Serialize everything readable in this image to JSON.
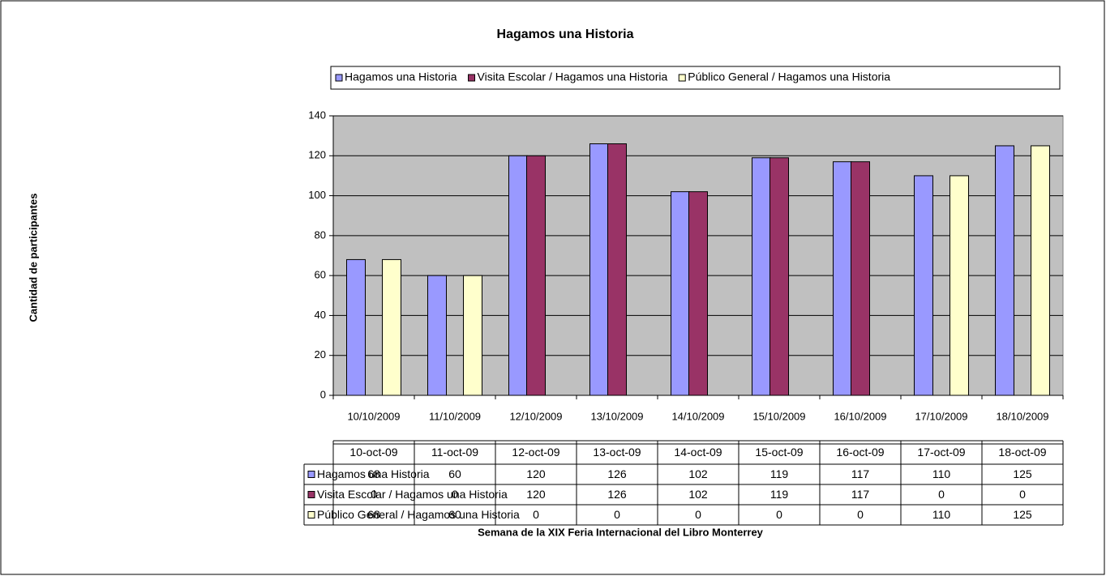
{
  "chart_data": {
    "type": "bar",
    "title": "Hagamos una Historia",
    "y_label": "Cantidad de participantes",
    "x_label": "Semana de la XIX Feria Internacional del Libro Monterrey",
    "categories": [
      "10/10/2009",
      "11/10/2009",
      "12/10/2009",
      "13/10/2009",
      "14/10/2009",
      "15/10/2009",
      "16/10/2009",
      "17/10/2009",
      "18/10/2009"
    ],
    "table_columns": [
      "10-oct-09",
      "11-oct-09",
      "12-oct-09",
      "13-oct-09",
      "14-oct-09",
      "15-oct-09",
      "16-oct-09",
      "17-oct-09",
      "18-oct-09"
    ],
    "series": [
      {
        "name": "Hagamos una Historia",
        "color": "#9999ff",
        "values": [
          68,
          60,
          120,
          126,
          102,
          119,
          117,
          110,
          125
        ]
      },
      {
        "name": "Visita Escolar / Hagamos una Historia",
        "color": "#993366",
        "values": [
          0,
          0,
          120,
          126,
          102,
          119,
          117,
          0,
          0
        ]
      },
      {
        "name": "Público General / Hagamos una Historia",
        "color": "#ffffcc",
        "values": [
          68,
          60,
          0,
          0,
          0,
          0,
          0,
          110,
          125
        ]
      }
    ],
    "ylim": [
      0,
      140
    ],
    "yticks": [
      0,
      20,
      40,
      60,
      80,
      100,
      120,
      140
    ],
    "grid": true,
    "legend": "top"
  }
}
